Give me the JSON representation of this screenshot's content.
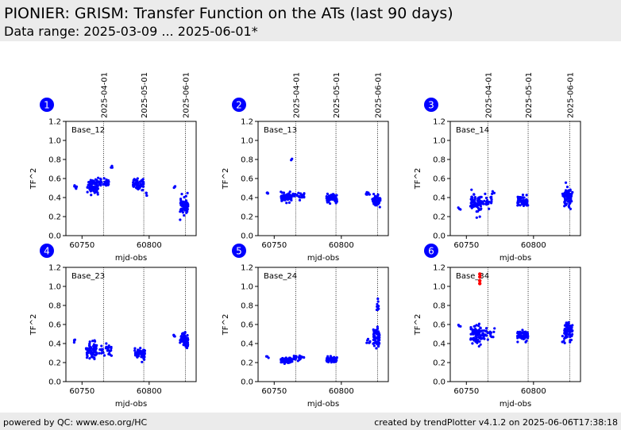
{
  "page": {
    "title": "PIONIER: GRISM: Transfer Function on the ATs (last 90 days)",
    "subtitle": "Data range: 2025-03-09 ... 2025-06-01*",
    "footer_left": "powered by QC: www.eso.org/HC",
    "footer_right": "created by trendPlotter v4.1.2 on 2025-06-06T17:38:18"
  },
  "colors": {
    "points": "#0000ff",
    "outlier": "#ff0000",
    "badge": "#0000ff",
    "vlines": "#000000"
  },
  "chart_data": {
    "type": "scatter",
    "xlabel": "mjd-obs",
    "ylabel": "TF^2",
    "xlim": [
      60738,
      60835
    ],
    "ylim": [
      0.0,
      1.2
    ],
    "xticks": [
      60750,
      60800
    ],
    "yticks": [
      0.0,
      0.2,
      0.4,
      0.6,
      0.8,
      1.0,
      1.2
    ],
    "date_markers": [
      {
        "label": "2025-04-01",
        "mjd": 60766
      },
      {
        "label": "2025-05-01",
        "mjd": 60796
      },
      {
        "label": "2025-06-01",
        "mjd": 60827
      }
    ],
    "panels": [
      {
        "number": "1",
        "name": "Base_12",
        "outliers": [],
        "clusters": [
          {
            "x": 60745,
            "dx": 1,
            "y": 0.52,
            "dy": 0.03,
            "n": 6
          },
          {
            "x": 60758,
            "dx": 4,
            "y": 0.52,
            "dy": 0.07,
            "n": 70
          },
          {
            "x": 60766,
            "dx": 4,
            "y": 0.56,
            "dy": 0.04,
            "n": 30
          },
          {
            "x": 60772,
            "dx": 0.5,
            "y": 0.72,
            "dy": 0.02,
            "n": 4
          },
          {
            "x": 60792,
            "dx": 4,
            "y": 0.54,
            "dy": 0.05,
            "n": 60
          },
          {
            "x": 60798,
            "dx": 0.5,
            "y": 0.44,
            "dy": 0.03,
            "n": 5
          },
          {
            "x": 60819,
            "dx": 0.5,
            "y": 0.51,
            "dy": 0.02,
            "n": 4
          },
          {
            "x": 60826,
            "dx": 3,
            "y": 0.32,
            "dy": 0.08,
            "n": 70
          }
        ]
      },
      {
        "number": "2",
        "name": "Base_13",
        "outliers": [],
        "clusters": [
          {
            "x": 60745,
            "dx": 1,
            "y": 0.44,
            "dy": 0.02,
            "n": 4
          },
          {
            "x": 60759,
            "dx": 4,
            "y": 0.4,
            "dy": 0.04,
            "n": 70
          },
          {
            "x": 60763,
            "dx": 0.4,
            "y": 0.8,
            "dy": 0.01,
            "n": 2
          },
          {
            "x": 60768,
            "dx": 5,
            "y": 0.42,
            "dy": 0.03,
            "n": 25
          },
          {
            "x": 60793,
            "dx": 4,
            "y": 0.39,
            "dy": 0.04,
            "n": 60
          },
          {
            "x": 60820,
            "dx": 1.5,
            "y": 0.43,
            "dy": 0.02,
            "n": 8
          },
          {
            "x": 60826,
            "dx": 3,
            "y": 0.37,
            "dy": 0.05,
            "n": 70
          }
        ]
      },
      {
        "number": "3",
        "name": "Base_14",
        "outliers": [],
        "clusters": [
          {
            "x": 60745,
            "dx": 1,
            "y": 0.28,
            "dy": 0.02,
            "n": 3
          },
          {
            "x": 60757,
            "dx": 4,
            "y": 0.33,
            "dy": 0.09,
            "n": 70
          },
          {
            "x": 60765,
            "dx": 4,
            "y": 0.36,
            "dy": 0.06,
            "n": 25
          },
          {
            "x": 60770,
            "dx": 1,
            "y": 0.46,
            "dy": 0.02,
            "n": 3
          },
          {
            "x": 60792,
            "dx": 4,
            "y": 0.36,
            "dy": 0.05,
            "n": 60
          },
          {
            "x": 60822,
            "dx": 1,
            "y": 0.43,
            "dy": 0.03,
            "n": 4
          },
          {
            "x": 60826,
            "dx": 3,
            "y": 0.4,
            "dy": 0.09,
            "n": 70
          }
        ]
      },
      {
        "number": "4",
        "name": "Base_23",
        "outliers": [],
        "clusters": [
          {
            "x": 60745,
            "dx": 1,
            "y": 0.43,
            "dy": 0.02,
            "n": 4
          },
          {
            "x": 60757,
            "dx": 4,
            "y": 0.33,
            "dy": 0.08,
            "n": 70
          },
          {
            "x": 60767,
            "dx": 5,
            "y": 0.33,
            "dy": 0.05,
            "n": 30
          },
          {
            "x": 60793,
            "dx": 4,
            "y": 0.3,
            "dy": 0.06,
            "n": 60
          },
          {
            "x": 60819,
            "dx": 1,
            "y": 0.49,
            "dy": 0.02,
            "n": 4
          },
          {
            "x": 60826,
            "dx": 3,
            "y": 0.44,
            "dy": 0.06,
            "n": 70
          }
        ]
      },
      {
        "number": "5",
        "name": "Base_24",
        "outliers": [],
        "clusters": [
          {
            "x": 60745,
            "dx": 1,
            "y": 0.26,
            "dy": 0.02,
            "n": 3
          },
          {
            "x": 60759,
            "dx": 4,
            "y": 0.22,
            "dy": 0.03,
            "n": 70
          },
          {
            "x": 60768,
            "dx": 5,
            "y": 0.24,
            "dy": 0.03,
            "n": 25
          },
          {
            "x": 60793,
            "dx": 4,
            "y": 0.23,
            "dy": 0.03,
            "n": 60
          },
          {
            "x": 60820,
            "dx": 1.5,
            "y": 0.44,
            "dy": 0.03,
            "n": 6
          },
          {
            "x": 60826,
            "dx": 2.5,
            "y": 0.45,
            "dy": 0.1,
            "n": 60
          },
          {
            "x": 60827,
            "dx": 0.8,
            "y": 0.77,
            "dy": 0.08,
            "n": 10
          }
        ]
      },
      {
        "number": "6",
        "name": "Base_34",
        "outliers": [
          {
            "x": 60760,
            "y": 1.13
          },
          {
            "x": 60760,
            "y": 1.1
          },
          {
            "x": 60760,
            "y": 1.06
          },
          {
            "x": 60760,
            "y": 1.03
          }
        ],
        "clusters": [
          {
            "x": 60745,
            "dx": 1,
            "y": 0.58,
            "dy": 0.02,
            "n": 3
          },
          {
            "x": 60757,
            "dx": 4,
            "y": 0.5,
            "dy": 0.09,
            "n": 70
          },
          {
            "x": 60766,
            "dx": 5,
            "y": 0.5,
            "dy": 0.05,
            "n": 30
          },
          {
            "x": 60792,
            "dx": 4,
            "y": 0.48,
            "dy": 0.05,
            "n": 60
          },
          {
            "x": 60822,
            "dx": 1,
            "y": 0.44,
            "dy": 0.04,
            "n": 4
          },
          {
            "x": 60826,
            "dx": 3,
            "y": 0.53,
            "dy": 0.08,
            "n": 70
          }
        ]
      }
    ]
  }
}
